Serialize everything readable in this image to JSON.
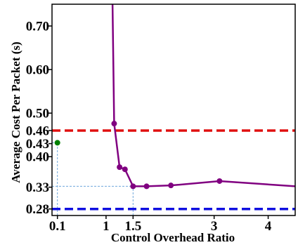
{
  "chart_data": {
    "type": "line",
    "xlabel": "Control Overhead Ratio",
    "ylabel": "Average Cost Per Packet (s)",
    "xlim": [
      0,
      4.5
    ],
    "ylim": [
      0.265,
      0.75
    ],
    "x_ticks": [
      {
        "value": 0.1,
        "label": "0.1"
      },
      {
        "value": 1,
        "label": "1"
      },
      {
        "value": 1.5,
        "label": "1.5"
      },
      {
        "value": 3,
        "label": "3"
      },
      {
        "value": 4,
        "label": "4"
      }
    ],
    "y_ticks": [
      {
        "value": 0.28,
        "label": "0.28"
      },
      {
        "value": 0.33,
        "label": "0.33"
      },
      {
        "value": 0.4,
        "label": "0.40"
      },
      {
        "value": 0.43,
        "label": "0.43"
      },
      {
        "value": 0.46,
        "label": "0.46"
      },
      {
        "value": 0.5,
        "label": "0.50"
      },
      {
        "value": 0.6,
        "label": "0.60"
      },
      {
        "value": 0.7,
        "label": "0.70"
      }
    ],
    "series": [
      {
        "color": "#800080",
        "line_x": [
          1.12,
          1.15,
          1.25,
          1.35,
          1.5,
          1.75,
          2.2,
          3.1,
          4.5
        ],
        "line_y": [
          0.75,
          0.476,
          0.376,
          0.371,
          0.332,
          0.332,
          0.334,
          0.344,
          0.332
        ],
        "markers_x": [
          1.15,
          1.25,
          1.35,
          1.5,
          1.75,
          2.2,
          3.1
        ],
        "markers_y": [
          0.476,
          0.376,
          0.371,
          0.332,
          0.332,
          0.334,
          0.344
        ]
      }
    ],
    "single_point": {
      "x": 0.1,
      "y": 0.432,
      "color": "#008000"
    },
    "reference_lines": [
      {
        "orientation": "horizontal",
        "y": 0.46,
        "color": "#e01010",
        "style": "dashed"
      },
      {
        "orientation": "horizontal",
        "y": 0.28,
        "color": "#1010e0",
        "style": "dashed"
      }
    ],
    "guide_lines": {
      "color": "#6fa8dc",
      "style": "dotted",
      "horizontal": [
        {
          "y": 0.432,
          "x_from": 0,
          "x_to": 0.1
        },
        {
          "y": 0.332,
          "x_from": 0,
          "x_to": 1.5
        }
      ],
      "vertical": [
        {
          "x": 0.1,
          "y_from": 0.265,
          "y_to": 0.432
        },
        {
          "x": 1.5,
          "y_from": 0.265,
          "y_to": 0.332
        }
      ]
    },
    "grid": false,
    "legend": "none"
  }
}
